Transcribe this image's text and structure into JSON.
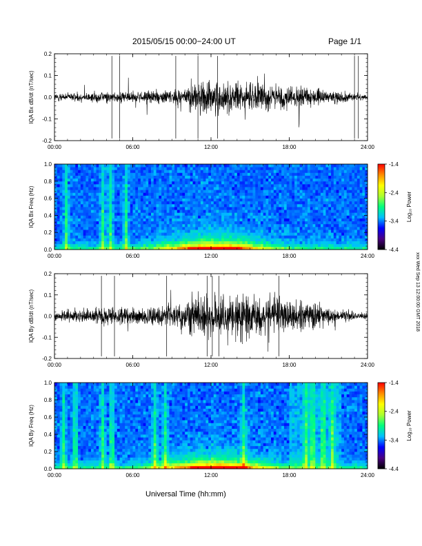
{
  "header": {
    "title": "2015/05/15  00:00−24:00 UT",
    "page": "Page 1/1"
  },
  "xlabel": "Universal Time (hh:mm)",
  "timestamp": "xxx Wed Sep 13 12:00:00 GMT 2018",
  "colors": {
    "trace": "#000000",
    "spectrogram_scale": [
      "#000000",
      "#4b0082",
      "#0000ff",
      "#00bfff",
      "#00ff7f",
      "#adff2f",
      "#ffff00",
      "#ff8c00",
      "#ff0000"
    ]
  },
  "chart_data": [
    {
      "type": "line",
      "panel": "bx-timeseries",
      "ylabel": "IQA Bx dB/dt (nT/sec)",
      "x_ticks": [
        "00:00",
        "06:00",
        "12:00",
        "18:00",
        "24:00"
      ],
      "x_range_hours": [
        0,
        24
      ],
      "ylim": [
        -0.2,
        0.2
      ],
      "y_ticks": [
        "0.2",
        "0.1",
        "0.0",
        "-0.1",
        "-0.2"
      ],
      "envelope": {
        "hours": [
          0,
          2,
          4,
          6,
          8,
          9,
          10,
          11,
          12,
          13,
          14,
          15,
          16,
          17,
          18,
          19,
          20,
          21,
          22,
          23,
          24
        ],
        "amplitude": [
          0.02,
          0.025,
          0.03,
          0.035,
          0.04,
          0.045,
          0.06,
          0.085,
          0.1,
          0.09,
          0.08,
          0.08,
          0.075,
          0.07,
          0.065,
          0.055,
          0.045,
          0.035,
          0.03,
          0.02,
          0.015
        ]
      }
    },
    {
      "type": "heatmap",
      "panel": "bx-spectrogram",
      "ylabel": "IQA Bx Freq (Hz)",
      "colorbar_label": "Log₁₀ Power",
      "x_ticks": [
        "00:00",
        "06:00",
        "12:00",
        "18:00",
        "24:00"
      ],
      "x_range_hours": [
        0,
        24
      ],
      "ylim": [
        0.0,
        1.0
      ],
      "y_ticks": [
        "1.0",
        "0.8",
        "0.6",
        "0.4",
        "0.2",
        "0.0"
      ],
      "color_range": [
        -4.4,
        -1.4
      ],
      "colorbar_ticks": [
        "-1.4",
        "-2.4",
        "-3.4",
        "-4.4"
      ]
    },
    {
      "type": "line",
      "panel": "by-timeseries",
      "ylabel": "IQA By dB/dt (nT/sec)",
      "x_ticks": [
        "00:00",
        "06:00",
        "12:00",
        "18:00",
        "24:00"
      ],
      "x_range_hours": [
        0,
        24
      ],
      "ylim": [
        -0.2,
        0.2
      ],
      "y_ticks": [
        "0.2",
        "0.1",
        "0.0",
        "-0.1",
        "-0.2"
      ],
      "envelope": {
        "hours": [
          0,
          2,
          4,
          6,
          8,
          9,
          10,
          11,
          12,
          13,
          14,
          15,
          16,
          17,
          18,
          19,
          20,
          21,
          22,
          23,
          24
        ],
        "amplitude": [
          0.03,
          0.035,
          0.05,
          0.045,
          0.05,
          0.055,
          0.08,
          0.11,
          0.14,
          0.13,
          0.12,
          0.115,
          0.11,
          0.1,
          0.09,
          0.08,
          0.07,
          0.05,
          0.035,
          0.025,
          0.015
        ]
      }
    },
    {
      "type": "heatmap",
      "panel": "by-spectrogram",
      "ylabel": "IQA By Freq (Hz)",
      "colorbar_label": "Log₁₀ Power",
      "x_ticks": [
        "00:00",
        "06:00",
        "12:00",
        "18:00",
        "24:00"
      ],
      "x_range_hours": [
        0,
        24
      ],
      "ylim": [
        0.0,
        1.0
      ],
      "y_ticks": [
        "1.0",
        "0.8",
        "0.6",
        "0.4",
        "0.2",
        "0.0"
      ],
      "color_range": [
        -4.4,
        -1.4
      ],
      "colorbar_ticks": [
        "-1.4",
        "-2.4",
        "-3.4",
        "-4.4"
      ]
    }
  ]
}
